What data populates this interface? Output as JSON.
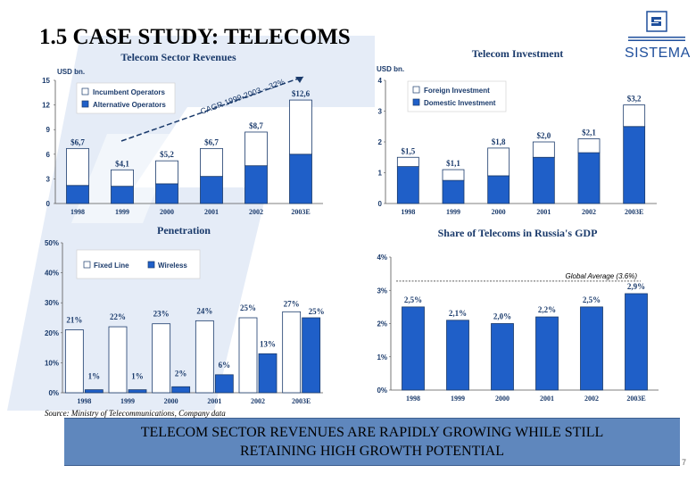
{
  "title": "1.5 CASE STUDY: TELECOMS",
  "logo": {
    "name": "SISTEMA",
    "icon": "sistema-s-logo-icon",
    "color": "#1f4f9c"
  },
  "colors": {
    "fill": "#1f5fc8",
    "outline": "#1a3a6b",
    "empty": "#ffffff",
    "banner": "#5f87bd",
    "watermark": "#c9d8ee"
  },
  "chart_data": [
    {
      "type": "bar",
      "stacked": true,
      "title": "Telecom Sector Revenues",
      "unit": "USD bn.",
      "categories": [
        "1998",
        "1999",
        "2000",
        "2001",
        "2002",
        "2003E"
      ],
      "series": [
        {
          "name": "Incumbent Operators",
          "values": [
            4.5,
            2.0,
            2.8,
            3.4,
            4.1,
            6.6
          ],
          "color": "#ffffff"
        },
        {
          "name": "Alternative Operators",
          "values": [
            2.2,
            2.1,
            2.4,
            3.3,
            4.6,
            6.0
          ],
          "color": "#1f5fc8"
        }
      ],
      "totals": [
        "$6,7",
        "$4,1",
        "$5,2",
        "$6,7",
        "$8,7",
        "$12,6"
      ],
      "ylim": [
        0,
        15
      ],
      "yticks": [
        "0",
        "3",
        "6",
        "9",
        "12",
        "15"
      ],
      "annotation": "CAGR 1999-2003 – 32%",
      "legend": "top-left"
    },
    {
      "type": "bar",
      "stacked": true,
      "title": "Telecom Investment",
      "unit": "USD bn.",
      "categories": [
        "1998",
        "1999",
        "2000",
        "2001",
        "2002",
        "2003E"
      ],
      "series": [
        {
          "name": "Foreign Investment",
          "values": [
            0.3,
            0.35,
            0.9,
            0.5,
            0.45,
            0.7
          ],
          "color": "#ffffff"
        },
        {
          "name": "Domestic Investment",
          "values": [
            1.2,
            0.75,
            0.9,
            1.5,
            1.65,
            2.5
          ],
          "color": "#1f5fc8"
        }
      ],
      "totals": [
        "$1,5",
        "$1,1",
        "$1,8",
        "$2,0",
        "$2,1",
        "$3,2"
      ],
      "ylim": [
        0,
        4
      ],
      "yticks": [
        "0",
        "1",
        "2",
        "3",
        "4"
      ],
      "legend": "top-left"
    },
    {
      "type": "bar",
      "title": "Penetration",
      "categories": [
        "1998",
        "1999",
        "2000",
        "2001",
        "2002",
        "2003E"
      ],
      "series": [
        {
          "name": "Fixed Line",
          "values": [
            21,
            22,
            23,
            24,
            25,
            27
          ],
          "labels": [
            "21%",
            "22%",
            "23%",
            "24%",
            "25%",
            "27%"
          ],
          "color": "#ffffff"
        },
        {
          "name": "Wireless",
          "values": [
            1,
            1,
            2,
            6,
            13,
            25
          ],
          "labels": [
            "1%",
            "1%",
            "2%",
            "6%",
            "13%",
            "25%"
          ],
          "color": "#1f5fc8"
        }
      ],
      "ylim": [
        0,
        50
      ],
      "yticks": [
        "0%",
        "10%",
        "20%",
        "30%",
        "40%",
        "50%"
      ],
      "legend": "top-left"
    },
    {
      "type": "bar",
      "title": "Share of Telecoms in Russia's GDP",
      "categories": [
        "1998",
        "1999",
        "2000",
        "2001",
        "2002",
        "2003E"
      ],
      "series": [
        {
          "values": [
            2.5,
            2.1,
            2.0,
            2.2,
            2.5,
            2.9
          ],
          "labels": [
            "2,5%",
            "2,1%",
            "2,0%",
            "2,2%",
            "2,5%",
            "2,9%"
          ],
          "color": "#1f5fc8"
        }
      ],
      "ylim": [
        0,
        4
      ],
      "yticks": [
        "0%",
        "1%",
        "2%",
        "3%",
        "4%"
      ],
      "reference_line": {
        "value": 3.6,
        "label": "Global Average (3.6%)"
      }
    }
  ],
  "source": "Source: Ministry of Telecommunications, Company data",
  "banner": {
    "line1": "TELECOM SECTOR REVENUES ARE RAPIDLY GROWING WHILE STILL",
    "line2": "RETAINING HIGH GROWTH POTENTIAL"
  },
  "page_number": "7"
}
